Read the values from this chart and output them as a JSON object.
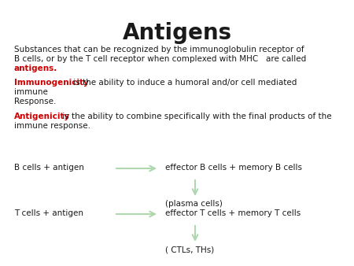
{
  "title": "Antigens",
  "title_fontsize": 20,
  "title_fontweight": "bold",
  "bg_color": "#ffffff",
  "text_color": "#1a1a1a",
  "red_color": "#cc0000",
  "arrow_color": "#b0d8b0",
  "body_fontsize": 7.5,
  "para1_line1": "Substances that can be recognized by the immunoglobulin receptor of",
  "para1_line2": "B cells, or by the T cell receptor when complexed with MHC   are called",
  "para1_word_red": "antigens.",
  "immuno_label": "Immunogenicity",
  "immuno_rest": " is the ability to induce a humoral and/or cell mediated",
  "immuno_rest2": "immune",
  "immuno_rest3": "Response.",
  "antigen_label": "Antigenicity",
  "antigen_rest": " is the ability to combine specifically with the final products of the",
  "antigen_rest2": "immune response.",
  "b_cells_left": "B cells + antigen",
  "b_cells_right": "effector B cells + memory B cells",
  "plasma": "(plasma cells)",
  "t_cells_left": "T cells + antigen",
  "t_cells_right": "effector T cells + memory T cells",
  "ctls": "( CTLs, THs)"
}
